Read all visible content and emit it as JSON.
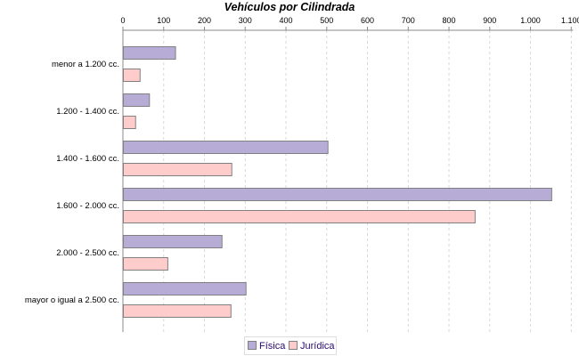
{
  "chart_data": {
    "type": "bar",
    "orientation": "horizontal",
    "title": "Vehículos por Cilindrada",
    "categories": [
      "menor a 1.200 cc.",
      "1.200 - 1.400 cc.",
      "1.400 - 1.600 cc.",
      "1.600 - 2.000 cc.",
      "2.000 - 2.500 cc.",
      "mayor o igual a 2.500 cc."
    ],
    "series": [
      {
        "name": "Física",
        "color": "#b6acd6",
        "values": [
          128,
          64,
          502,
          1051,
          242,
          301
        ]
      },
      {
        "name": "Jurídica",
        "color": "#ffcccc",
        "values": [
          41,
          30,
          266,
          863,
          109,
          264
        ]
      }
    ],
    "xlim": [
      0,
      1100
    ],
    "ticks": [
      0,
      100,
      200,
      300,
      400,
      500,
      600,
      700,
      800,
      900,
      1000,
      1100
    ],
    "tick_labels": [
      "0",
      "100",
      "200",
      "300",
      "400",
      "500",
      "600",
      "700",
      "800",
      "900",
      "1.000",
      "1.100"
    ],
    "axis_position": "top",
    "grid": true,
    "legend": "bottom"
  }
}
